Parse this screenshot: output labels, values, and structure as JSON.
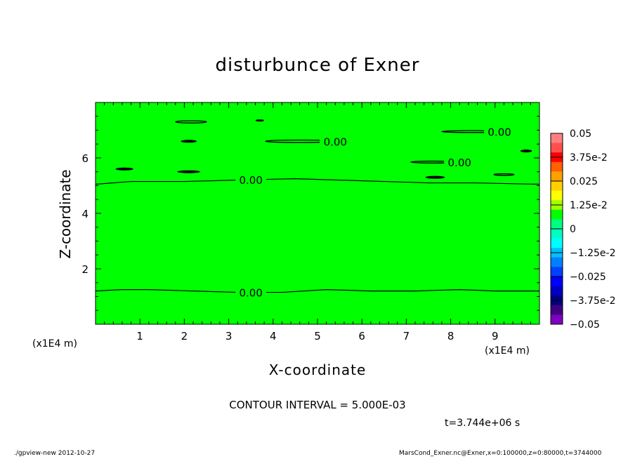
{
  "chart_data": {
    "type": "contour",
    "title": "disturbunce of Exner",
    "xlabel": "X-coordinate",
    "ylabel": "Z-coordinate",
    "x_unit": "(x1E4 m)",
    "xlim": [
      0,
      10
    ],
    "ylim": [
      0,
      8
    ],
    "x_ticks": [
      1,
      2,
      3,
      4,
      5,
      6,
      7,
      8,
      9
    ],
    "y_ticks": [
      2,
      4,
      6
    ],
    "field_value": 0,
    "contours": [
      {
        "level": "0.00",
        "x": [
          0,
          0.6,
          1.2,
          2.2,
          3.2,
          4.2,
          5.2,
          6.2,
          7.2,
          8.2,
          9.0,
          10.0
        ],
        "y": [
          1.2,
          1.25,
          1.25,
          1.2,
          1.15,
          1.15,
          1.25,
          1.2,
          1.2,
          1.25,
          1.2,
          1.2
        ],
        "label_x": 3.5
      },
      {
        "level": "0.00",
        "x": [
          0,
          0.8,
          2.0,
          3.2,
          4.5,
          5.5,
          6.5,
          7.5,
          8.5,
          10.0
        ],
        "y": [
          5.05,
          5.15,
          5.15,
          5.2,
          5.25,
          5.2,
          5.15,
          5.1,
          5.1,
          5.05
        ],
        "label_x": 3.5
      },
      {
        "level": "0.00",
        "ellipse": [
          4.6,
          6.6,
          1.55,
          0.09
        ],
        "label_x": 5.4
      },
      {
        "level": "0.00",
        "ellipse": [
          8.5,
          6.95,
          1.4,
          0.07
        ],
        "label_x": 9.1
      },
      {
        "level": "0.00",
        "ellipse": [
          7.6,
          5.85,
          1.0,
          0.07
        ],
        "label_x": 8.2
      },
      {
        "level": "",
        "ellipse": [
          2.15,
          7.3,
          0.7,
          0.08
        ]
      },
      {
        "level": "",
        "ellipse": [
          3.7,
          7.35,
          0.17,
          0.04
        ]
      },
      {
        "level": "",
        "ellipse": [
          9.2,
          5.4,
          0.45,
          0.06
        ]
      }
    ],
    "blobs": [
      {
        "x": 0.65,
        "y": 5.6,
        "rx": 0.2,
        "ry": 0.03
      },
      {
        "x": 2.1,
        "y": 6.6,
        "rx": 0.18,
        "ry": 0.035
      },
      {
        "x": 2.1,
        "y": 5.5,
        "rx": 0.26,
        "ry": 0.035
      },
      {
        "x": 7.65,
        "y": 5.3,
        "rx": 0.22,
        "ry": 0.035
      },
      {
        "x": 9.7,
        "y": 6.25,
        "rx": 0.13,
        "ry": 0.025
      }
    ],
    "colorbar": {
      "labels": [
        "0.05",
        "3.75e-2",
        "0.025",
        "1.25e-2",
        "0",
        "−1.25e-2",
        "−0.025",
        "−3.75e-2",
        "−0.05"
      ],
      "colors": [
        "#ff8080",
        "#ff5050",
        "#ff0000",
        "#ff6000",
        "#ffa000",
        "#ffd000",
        "#ffff00",
        "#a0ff00",
        "#00ff00",
        "#00ff80",
        "#00ffc0",
        "#00ffff",
        "#00c0ff",
        "#0080ff",
        "#0040ff",
        "#0000ff",
        "#0000c0",
        "#000080",
        "#400080",
        "#8000c0"
      ],
      "field_color": "#00ff00"
    }
  },
  "text": {
    "title": "disturbunce of Exner",
    "xlabel": "X-coordinate",
    "ylabel": "Z-coordinate",
    "x_unit_left": "(x1E4 m)",
    "x_unit_right": "(x1E4 m)",
    "contour_interval": "CONTOUR INTERVAL = 5.000E-03",
    "time": "t=3.744e+06 s",
    "footer_left": "./gpview-new   2012-10-27",
    "footer_right": "MarsCond_Exner.nc@Exner,x=0:100000,z=0:80000,t=3744000"
  }
}
